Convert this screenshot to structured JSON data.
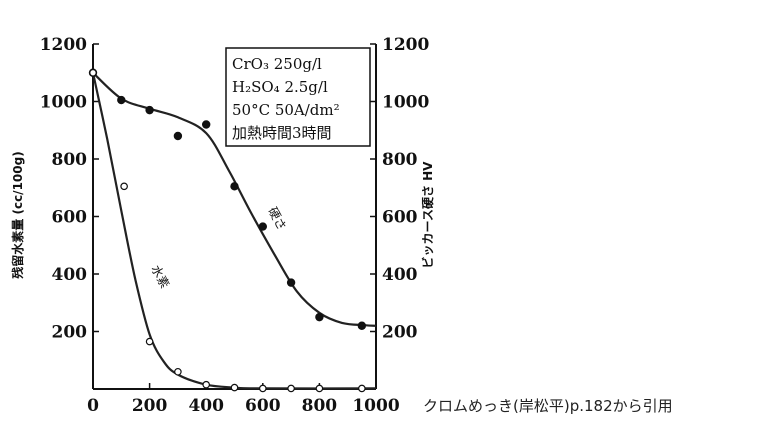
{
  "chart_data": {
    "type": "line",
    "xlim": [
      0,
      1000
    ],
    "ylim": [
      0,
      1200
    ],
    "x_ticks": [
      "0",
      "200",
      "400",
      "600",
      "800",
      "1000"
    ],
    "y_ticks_left": [
      "200",
      "400",
      "600",
      "800",
      "1000",
      "1200"
    ],
    "y_ticks_right": [
      "200",
      "400",
      "600",
      "800",
      "1000",
      "1200"
    ],
    "ylabel_left": "残留水素量 (cc/100g)",
    "ylabel_right": "ビッカース硬さ HV",
    "xlabel": "",
    "grid": false,
    "conditions": [
      "CrO₃ 250g/l",
      "H₂SO₄ 2.5g/l",
      "50°C 50A/dm²",
      "加熱時間3時間"
    ],
    "series": [
      {
        "name": "硬さ",
        "marker": "filled",
        "points": [
          [
            0,
            1100
          ],
          [
            100,
            1005
          ],
          [
            200,
            970
          ],
          [
            300,
            880
          ],
          [
            400,
            920
          ],
          [
            500,
            705
          ],
          [
            600,
            565
          ],
          [
            700,
            370
          ],
          [
            800,
            250
          ],
          [
            950,
            220
          ]
        ],
        "curve": [
          [
            0,
            1100
          ],
          [
            100,
            1010
          ],
          [
            200,
            975
          ],
          [
            300,
            945
          ],
          [
            400,
            890
          ],
          [
            480,
            760
          ],
          [
            560,
            610
          ],
          [
            640,
            470
          ],
          [
            720,
            340
          ],
          [
            800,
            265
          ],
          [
            880,
            230
          ],
          [
            960,
            222
          ],
          [
            1000,
            220
          ]
        ]
      },
      {
        "name": "水素",
        "marker": "open",
        "points": [
          [
            0,
            1100
          ],
          [
            110,
            705
          ],
          [
            200,
            165
          ],
          [
            300,
            60
          ],
          [
            400,
            15
          ],
          [
            500,
            5
          ],
          [
            600,
            2
          ],
          [
            700,
            2
          ],
          [
            800,
            2
          ],
          [
            950,
            2
          ]
        ],
        "curve": [
          [
            0,
            1100
          ],
          [
            50,
            870
          ],
          [
            100,
            620
          ],
          [
            150,
            380
          ],
          [
            200,
            190
          ],
          [
            250,
            95
          ],
          [
            300,
            50
          ],
          [
            400,
            15
          ],
          [
            500,
            5
          ],
          [
            600,
            2
          ],
          [
            1000,
            2
          ]
        ]
      }
    ]
  },
  "caption": "クロムめっき(岸松平)p.182から引用"
}
